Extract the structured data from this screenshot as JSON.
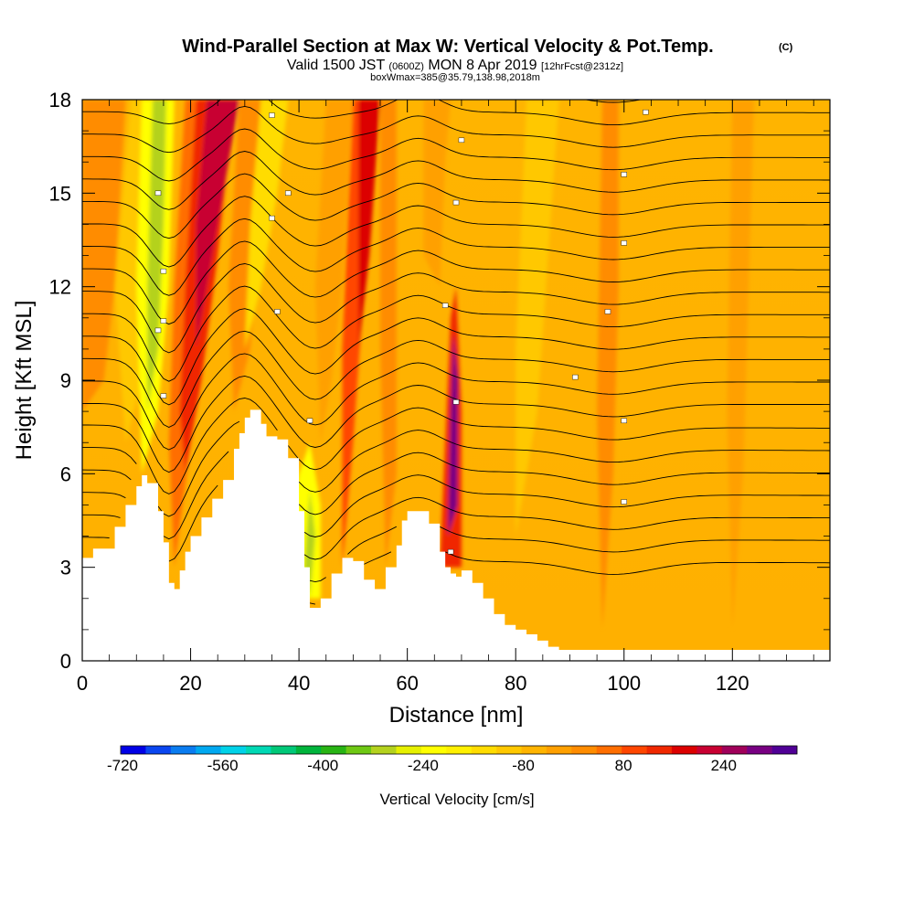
{
  "title": "Wind-Parallel Section at Max W: Vertical Velocity & Pot.Temp.",
  "title_mark": "(C)",
  "subtitle_main_a": "Valid 1500 JST",
  "subtitle_small_a": "(0600Z)",
  "subtitle_main_b": "MON 8 Apr 2019",
  "subtitle_small_b": "[12hrFcst@2312z]",
  "subtitle_line3": "boxWmax=385@35.79,138.98,2018m",
  "chart_data": {
    "type": "heatmap",
    "xlabel": "Distance [nm]",
    "ylabel": "Height [Kft MSL]",
    "xlim": [
      0,
      138
    ],
    "ylim": [
      0,
      18
    ],
    "x_ticks": [
      0,
      20,
      40,
      60,
      80,
      100,
      120
    ],
    "y_ticks": [
      0,
      3,
      6,
      9,
      12,
      15,
      18
    ],
    "terrain_profile": {
      "x": [
        0,
        2,
        6,
        8,
        10,
        11,
        12,
        14,
        15,
        16,
        17,
        18,
        19,
        20,
        22,
        24,
        26,
        28,
        29,
        30,
        31,
        32,
        33,
        34,
        36,
        38,
        40,
        41,
        42,
        43,
        44,
        46,
        48,
        50,
        52,
        54,
        56,
        58,
        59,
        60,
        62,
        64,
        66,
        67,
        68,
        69,
        70,
        72,
        74,
        76,
        78,
        80,
        82,
        84,
        86,
        88,
        90,
        138
      ],
      "y": [
        3.3,
        3.6,
        4.3,
        5.0,
        5.6,
        5.95,
        5.7,
        4.8,
        3.8,
        2.5,
        2.3,
        2.9,
        3.5,
        4.0,
        4.6,
        5.2,
        5.8,
        6.8,
        7.3,
        7.8,
        8.05,
        8.05,
        7.6,
        7.2,
        7.1,
        6.5,
        4.8,
        3.0,
        1.7,
        1.7,
        2.0,
        2.8,
        3.3,
        3.2,
        2.6,
        2.3,
        3.0,
        3.7,
        4.5,
        4.8,
        4.8,
        4.4,
        3.5,
        3.0,
        2.8,
        2.7,
        2.9,
        2.5,
        2.0,
        1.5,
        1.15,
        1.0,
        0.85,
        0.65,
        0.45,
        0.35,
        0.35,
        0.35
      ]
    },
    "colorbar": {
      "label": "Vertical Velocity [cm/s]",
      "tick_labels": [
        "-720",
        "-560",
        "-400",
        "-240",
        "-80",
        "80",
        "240"
      ],
      "colors": [
        "#0000e6",
        "#0a46f0",
        "#0a7cf0",
        "#00a8f0",
        "#00d2e8",
        "#00d8b4",
        "#00c878",
        "#00b43c",
        "#28b414",
        "#6ec814",
        "#b4d21e",
        "#e6f000",
        "#ffff00",
        "#fff000",
        "#ffdc00",
        "#ffc800",
        "#ffb400",
        "#ffa000",
        "#ff8c00",
        "#ff6e00",
        "#ff4600",
        "#f02800",
        "#dc0000",
        "#c80032",
        "#a0005a",
        "#780082",
        "#500096"
      ]
    }
  }
}
